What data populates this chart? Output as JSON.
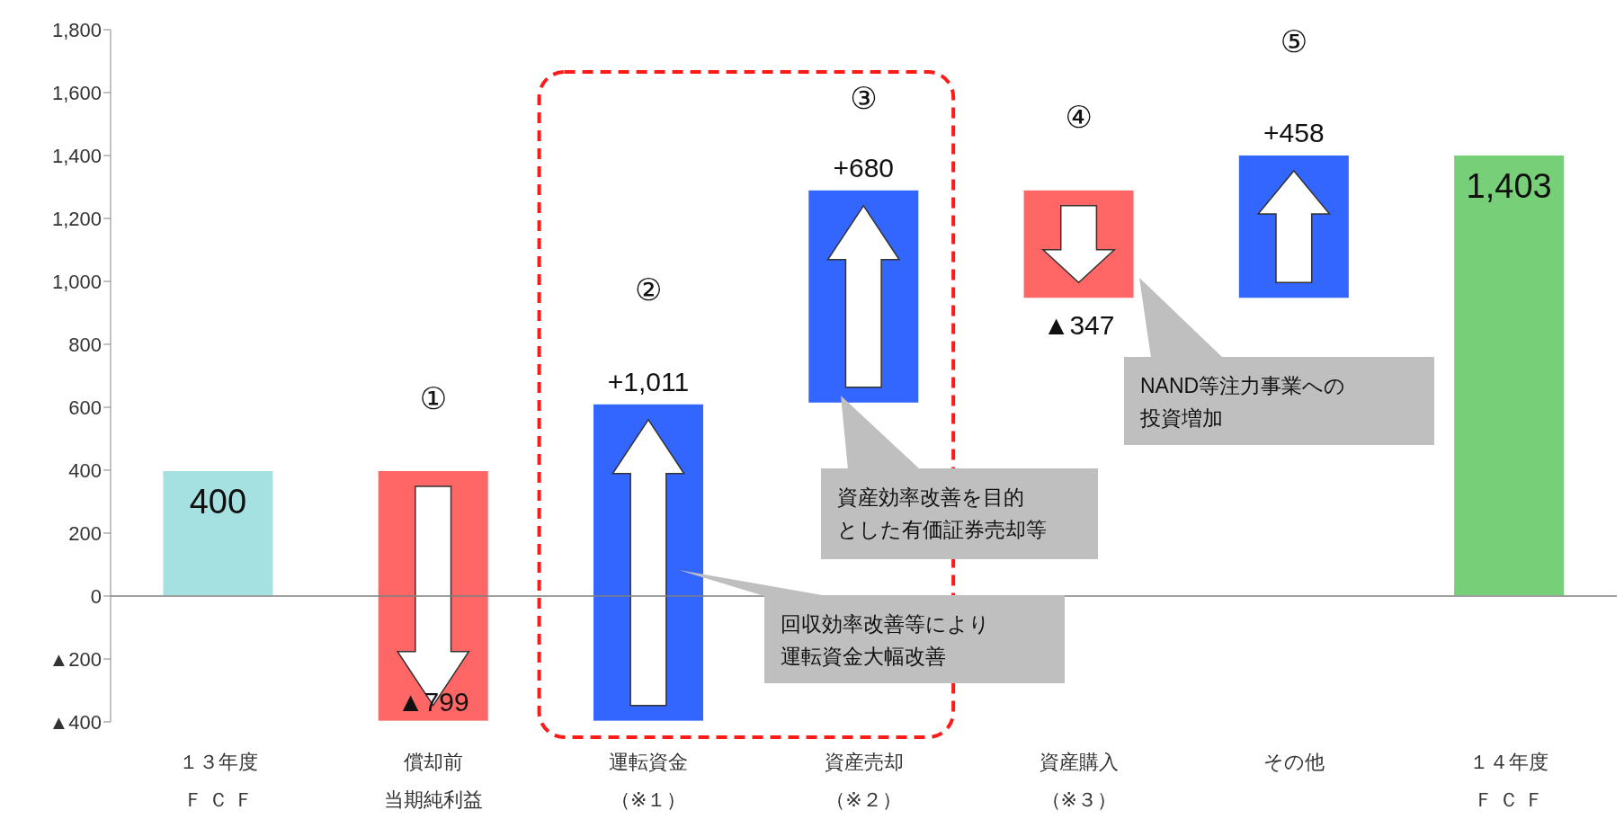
{
  "chart_data": {
    "type": "bar",
    "categories": [
      "１３年度Ｆ Ｃ Ｆ",
      "償却前当期純利益",
      "運転資金（※１）",
      "資産売却（※２）",
      "資産購入（※３）",
      "その他",
      "１４年度Ｆ Ｃ Ｆ"
    ],
    "values": [
      400,
      -799,
      1011,
      680,
      -347,
      458,
      1403
    ],
    "base": [
      0,
      400,
      -399,
      612,
      1292,
      945,
      0
    ],
    "colors": [
      "#a6e1e1",
      "#ff6666",
      "#3366ff",
      "#3366ff",
      "#ff6666",
      "#3366ff",
      "#77d077"
    ],
    "value_labels": [
      "400",
      "▲799",
      "+1,011",
      "+680",
      "▲347",
      "+458",
      "1,403"
    ],
    "ylim": [
      -400,
      1800
    ],
    "yticks": [
      {
        "value": -400,
        "label": "▲400"
      },
      {
        "value": -200,
        "label": "▲200"
      },
      0,
      200,
      400,
      600,
      800,
      {
        "value": 1000,
        "label": "1,000"
      },
      {
        "value": 1200,
        "label": "1,200"
      },
      {
        "value": 1400,
        "label": "1,400"
      },
      {
        "value": 1600,
        "label": "1,600"
      },
      {
        "value": 1800,
        "label": "1,800"
      }
    ],
    "ref_lines": [
      {
        "axis": "y",
        "value": 0,
        "color": "#7f7f7f"
      }
    ],
    "annotations": [
      "①",
      "②",
      "③",
      "④",
      "⑤",
      "回収効率改善等により運転資金大幅改善",
      "資産効率改善を目的とした有価証券売却等",
      "NAND等注力事業への投資増加"
    ]
  }
}
